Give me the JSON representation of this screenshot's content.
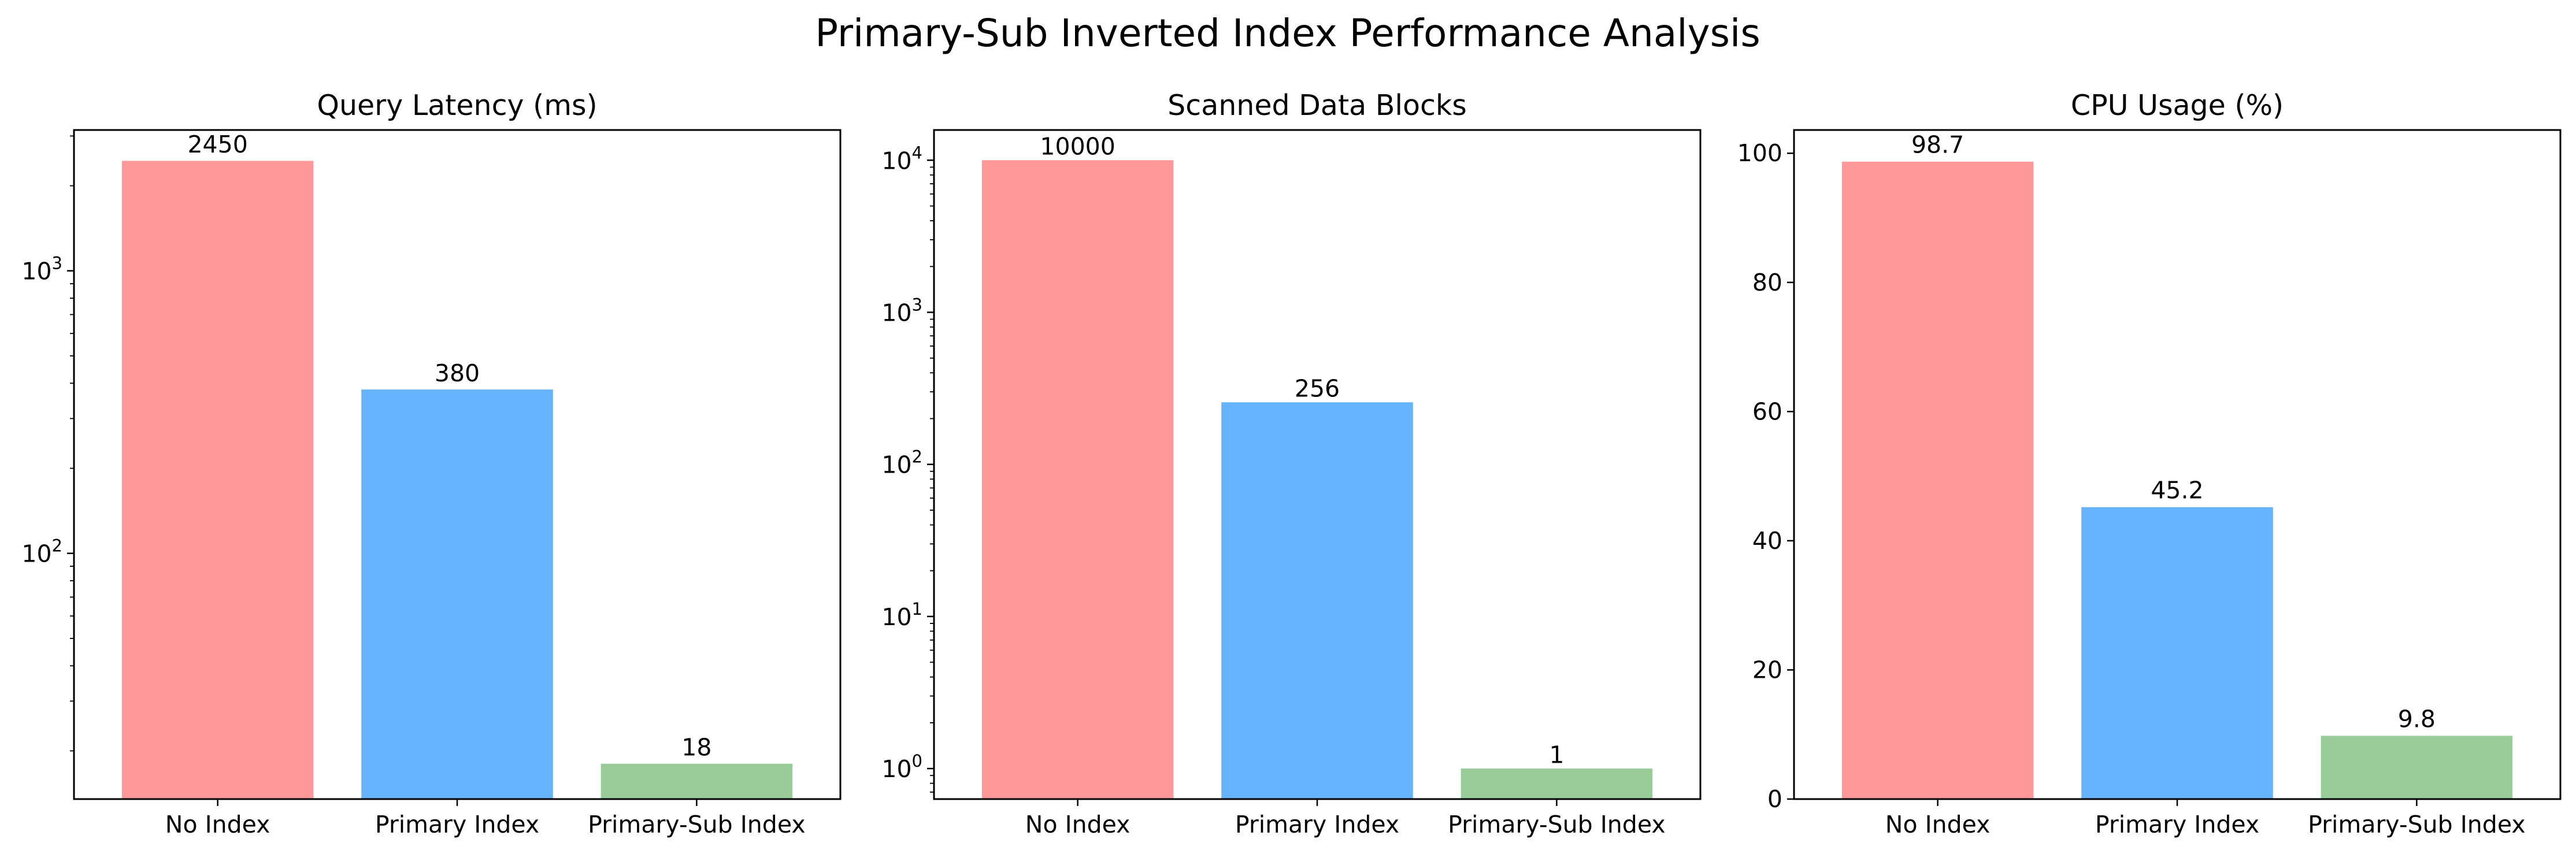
{
  "figure": {
    "title": "Primary-Sub Inverted Index Performance Analysis"
  },
  "chart_data": [
    {
      "type": "bar",
      "title": "Query Latency (ms)",
      "categories": [
        "No Index",
        "Primary Index",
        "Primary-Sub Index"
      ],
      "values": [
        2450,
        380,
        18
      ],
      "value_labels": [
        "2450",
        "380",
        "18"
      ],
      "colors": [
        "#ff9999",
        "#66b3ff",
        "#99cc99"
      ],
      "yscale": "log",
      "ylim": [
        13.5,
        3150
      ],
      "yticks": [
        {
          "value": 100,
          "base": "10",
          "exp": "2"
        },
        {
          "value": 1000,
          "base": "10",
          "exp": "3"
        }
      ],
      "xlabel": "",
      "ylabel": "",
      "grid": false,
      "legend": "none"
    },
    {
      "type": "bar",
      "title": "Scanned Data Blocks",
      "categories": [
        "No Index",
        "Primary Index",
        "Primary-Sub Index"
      ],
      "values": [
        10000,
        256,
        1
      ],
      "value_labels": [
        "10000",
        "256",
        "1"
      ],
      "colors": [
        "#ff9999",
        "#66b3ff",
        "#99cc99"
      ],
      "yscale": "log",
      "ylim": [
        0.63,
        15800
      ],
      "yticks": [
        {
          "value": 1,
          "base": "10",
          "exp": "0"
        },
        {
          "value": 10,
          "base": "10",
          "exp": "1"
        },
        {
          "value": 100,
          "base": "10",
          "exp": "2"
        },
        {
          "value": 1000,
          "base": "10",
          "exp": "3"
        },
        {
          "value": 10000,
          "base": "10",
          "exp": "4"
        }
      ],
      "xlabel": "",
      "ylabel": "",
      "grid": false,
      "legend": "none"
    },
    {
      "type": "bar",
      "title": "CPU Usage (%)",
      "categories": [
        "No Index",
        "Primary Index",
        "Primary-Sub Index"
      ],
      "values": [
        98.7,
        45.2,
        9.8
      ],
      "value_labels": [
        "98.7",
        "45.2",
        "9.8"
      ],
      "colors": [
        "#ff9999",
        "#66b3ff",
        "#99cc99"
      ],
      "yscale": "linear",
      "ylim": [
        0,
        103.6
      ],
      "yticks": [
        {
          "value": 0,
          "label": "0"
        },
        {
          "value": 20,
          "label": "20"
        },
        {
          "value": 40,
          "label": "40"
        },
        {
          "value": 60,
          "label": "60"
        },
        {
          "value": 80,
          "label": "80"
        },
        {
          "value": 100,
          "label": "100"
        }
      ],
      "xlabel": "",
      "ylabel": "",
      "grid": false,
      "legend": "none"
    }
  ]
}
